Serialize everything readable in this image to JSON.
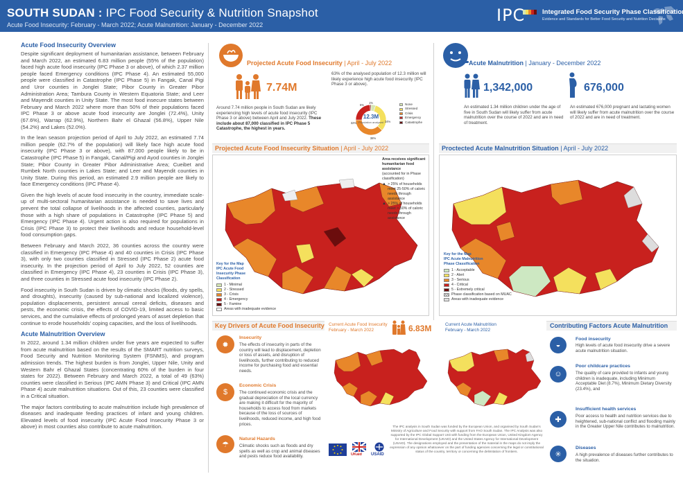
{
  "header": {
    "title_bold": "SOUTH SUDAN :",
    "title_light": "IPC Food Security & Nutrition Snapshot",
    "subtitle": "Acute Food Insecurity: February - March 2022; Acute Malnutrition: January - December 2022",
    "logo_text": "IPC",
    "org_name": "Integrated Food Security Phase Classification",
    "org_desc": "Evidence and Standards for Better Food Security and Nutrition Decisions",
    "colors": {
      "header_bg": "#2b5fa6",
      "accent_orange": "#e0792c"
    }
  },
  "left": {
    "afi_title": "Acute Food Insecurity Overview",
    "afi_paragraphs": [
      "Despite significant deployment of humanitarian assistance, between February and March 2022, an estimated 6.83 million people (55% of the population) faced high acute food insecurity (IPC Phase 3 or above), of which 2.37 million people faced Emergency conditions (IPC Phase 4). An estimated 55,000 people were classified in Catastrophe (IPC Phase 5) in Fangak, Canal Pigi and Uror counties in Jonglei State; Pibor County in Greater Pibor Administration Area; Tambura County in Western Equatoria State; and Leer and Mayendit counties in Unity State. The most food insecure states between February and March 2022 where more than 50% of their populations faced IPC Phase 3 or above acute food insecurity are Jonglei (72.4%), Unity (67.6%), Warrap (62.9%), Northern Bahr el Ghazal (56.8%), Upper Nile (54.2%) and Lakes (52.0%).",
      "In the lean season projection period of April to July 2022, an estimated 7.74 million people (62.7% of the population) will likely face high acute food insecurity (IPC Phase 3 or above), with 87,000 people likely to be in Catastrophe (IPC Phase 5) in Fangak, Canal/Pigi and Ayod counties in Jonglei State; Pibor County in Greater Pibor Administrative Area; Cueibet and Rumbek North counties in Lakes State; and Leer and Mayendit counties in Unity State. During this period, an estimated 2.9 million people are likely to face Emergency conditions (IPC Phase 4).",
      "Given the high levels of acute food insecurity in the country, immediate scale-up of multi-sectoral humanitarian assistance is needed to save lives and prevent the total collapse of livelihoods in the affected counties, particularly those with a high share of populations in Catastrophe (IPC Phase 5) and Emergency (IPC Phase 4). Urgent action is also required for populations in Crisis (IPC Phase 3) to protect their livelihoods and reduce household-level food consumption gaps.",
      "Between February and March 2022, 36 counties across the country were classified in Emergency (IPC Phase 4) and 40 counties in Crisis (IPC Phase 3), with only two counties classified in Stressed (IPC Phase 2) acute food insecurity. In the projection period of April to July 2022, 52 counties are classified in Emergency (IPC Phase 4), 23 counties in Crisis (IPC Phase 3), and three counties in Stressed acute food insecurity (IPC Phase 2).",
      "Food insecurity in South Sudan is driven by climatic shocks (floods, dry spells, and droughts), insecurity (caused by sub-national and localized violence), population displacements, persistent annual cereal deficits, diseases and pests, the economic crisis, the effects of COVID-19, limited access to basic services, and the cumulative effects of prolonged years of asset depletion that continue to erode households' coping capacities, and the loss of livelihoods."
    ],
    "amn_title": "Acute Malnutrition Overview",
    "amn_paragraphs": [
      "In 2022, around 1.34 million children under five years are expected to suffer from acute malnutrition based on the results of the SMART nutrition surveys, Food Security and Nutrition Monitoring System (FSNMS), and program admission trends. The highest burden is from Jonglei, Upper Nile, Unity and Western Bahr el Ghazal States (concentrating 60% of the burden in four states for 2022). Between February and March 2022, a total of 49 (63%) counties were classified in Serious (IPC AMN Phase 3) and Critical (IPC AMN Phase 4) acute malnutrition situations. Out of this, 23 counties were classified in a Critical situation.",
      "The major factors contributing to acute malnutrition include high prevalence of diseases and inadequate feeding practices of infant and young children. Elevated levels of food insecurity (IPC Acute Food Insecurity Phase 3 or above) in most counties also contribute to acute malnutrition."
    ]
  },
  "projected": {
    "title": "Projected Acute Food Insecurity",
    "period": "| April - July 2022",
    "big_number": "7.74M",
    "desc_plain": "Around 7.74 million people in South Sudan are likely experiencing high levels of acute food insecurity (IPC Phase 3 or above) between April and July 2022.",
    "desc_bold": "These include about 87,000 classified in IPC Phase 5 Catastrophe, the highest in years.",
    "donut_text": "63% of the analysed population of 12.3 million will likely experience high acute food insecurity (IPC Phase 3 or above).",
    "donut_center_value": "12.3M",
    "donut_center_label": "Population analysed",
    "donut_segments": [
      {
        "label": "None",
        "pct": 5,
        "color": "#d6e7b3"
      },
      {
        "label": "Stressed",
        "pct": 32,
        "color": "#f4e05d"
      },
      {
        "label": "Crisis",
        "pct": 38,
        "color": "#e8872a"
      },
      {
        "label": "Emergency",
        "pct": 24,
        "color": "#c8211e"
      },
      {
        "label": "Catastrophe",
        "pct": 1,
        "color": "#6b0d0d"
      }
    ],
    "donut_pct_labels": [
      "1%",
      "24%",
      "38%",
      "32%",
      "5%"
    ]
  },
  "malnutrition": {
    "title": "Acute Malnutrition",
    "period": "| January - December 2022",
    "children_number": "1,342,000",
    "children_desc": "An estimated 1.34 million children under the age of five in South Sudan will likely suffer from acute malnutrition over the course of 2022 and are in need of treatment.",
    "women_number": "676,000",
    "women_desc": "An estimated 676,000 pregnant and lactating women will likely suffer from acute malnutrition over the course of 2022 and are in need of treatment."
  },
  "afi_map": {
    "title": "Projected Acute Food Insecurity Situation",
    "period": "| April - July 2022",
    "key_title": "Key for the Map",
    "key_subtitle": "IPC Acute Food Insecurity Phase Classification",
    "phases": [
      {
        "label": "1 - Minimal",
        "color": "#d6e7b3"
      },
      {
        "label": "2 - Stressed",
        "color": "#f4e05d"
      },
      {
        "label": "3 - Crisis",
        "color": "#e8872a"
      },
      {
        "label": "4 - Emergency",
        "color": "#c8211e"
      },
      {
        "label": "5 - Famine",
        "color": "#6b0d0d"
      }
    ],
    "inadequate": "Areas with inadequate evidence",
    "assist_title": "Area receives significant humanitarian food assistance",
    "assist_subtitle": "(accounted for in Phase classification)",
    "assist_rows": [
      "> 25% of households meet 25-50% of caloric needs through assistance",
      "> 25% of households meet > 50% of caloric needs through assistance"
    ]
  },
  "amn_map": {
    "title": "Proctected Acute Malnutrition Situation",
    "period": "| April - July 2022",
    "key_title": "Key for the Map",
    "key_subtitle": "IPC Acute Malnutrition Phase Classification",
    "phases": [
      {
        "label": "1 - Acceptable",
        "color": "#cde8c2"
      },
      {
        "label": "2 - Alert",
        "color": "#f4e05d"
      },
      {
        "label": "3 - Serious",
        "color": "#e8872a"
      },
      {
        "label": "4 - Critical",
        "color": "#c8211e"
      },
      {
        "label": "5 - Extremely critical",
        "color": "#6b0d0d"
      }
    ],
    "extra_rows": [
      "Phase classification based on MUAC",
      "Areas with inadequate evidence"
    ]
  },
  "drivers": {
    "title": "Key Drivers of Acute Food Insecurity",
    "items": [
      {
        "title": "Insecurity",
        "text": "The effects of insecurity in parts of the country will lead to displacement, depletion or loss of assets, and disruption of livelihoods, further contributing to reduced income for purchasing food and essential needs."
      },
      {
        "title": "Economic Crisis",
        "text": "The continued economic crisis and the gradual depreciation of the local currency are making it difficult for the majority of households to access food from markets because of the loss of sources of livelihoods, reduced income, and high food prices."
      },
      {
        "title": "Natural Hazards",
        "text": "Climatic shocks such as floods and dry spells as well as crop and animal diseases and pests reduce food availability."
      }
    ]
  },
  "current_afi": {
    "title": "Current Acute Food Insecurity",
    "period": "February - March 2022",
    "number": "6.83M"
  },
  "current_amn": {
    "title": "Current Acute Malnutrition",
    "period": "February - March 2022"
  },
  "factors": {
    "title": "Contributing Factors Acute Malnutrition",
    "items": [
      {
        "title": "Food insecurity",
        "text": "High levels of acute food insecurity drive a severe acute malnutrition situation."
      },
      {
        "title": "Poor childcare practices",
        "text": "The quality of care provided to infants and young children is inadequate, including Minimum Acceptable Diet (8.7%), Minimum Dietary Diversity (23.4%), and"
      },
      {
        "title": "Insufficient health services",
        "text": "Poor access to health and nutrition services due to heightened, sub-national conflict and flooding mainly in the Greater Upper Nile contributes to malnutrition."
      },
      {
        "title": "Diseases",
        "text": "A high prevalence of diseases further contributes to the situation."
      }
    ]
  },
  "footer": {
    "donors": [
      "UKaid",
      "USAID"
    ],
    "text": "The IPC analysis in South Sudan was funded by the European Union, and organised by South Sudan's Ministry of Agriculture and Food Security with support from FAO South Sudan. The IPC Analysis was also supported by the IPC Global Support Unit with funding from the European Union, United Kingdom Agency for International Development (UKAID) and the United States Agency for International Development (USAID). The designations employed and the presentation of the material in the maps do not imply the expression of any opinion whatsoever on the part of funding agencies concerning the legal or constitutional status of the country, territory or concerning the delimitation of frontiers."
  }
}
